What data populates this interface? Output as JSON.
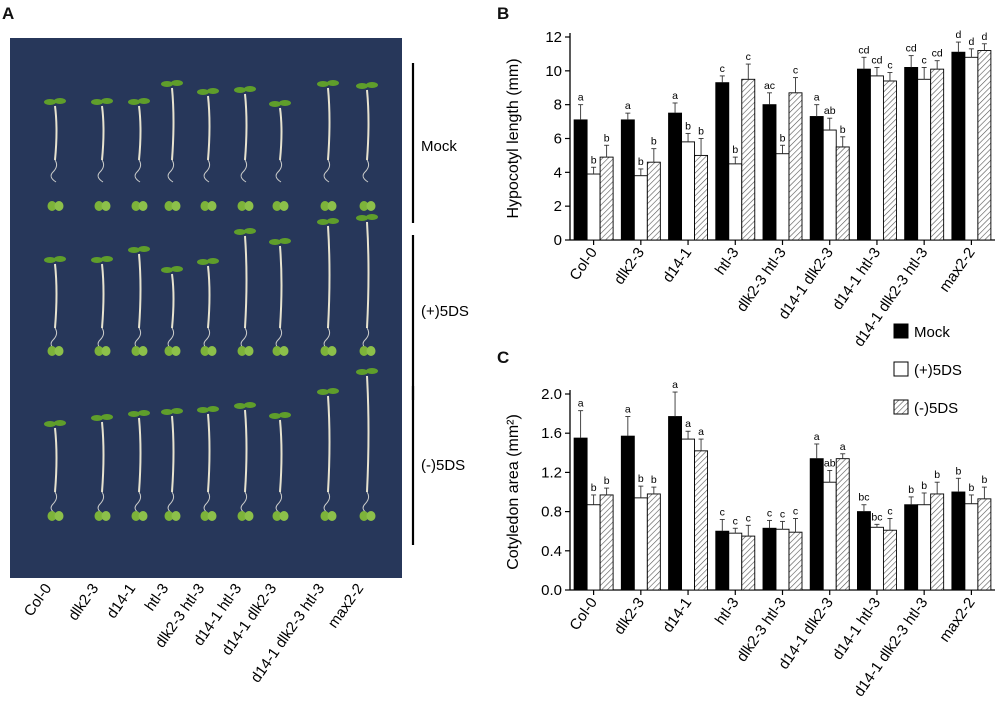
{
  "panel_labels": {
    "a": "A",
    "b": "B",
    "c": "C"
  },
  "photo": {
    "row_labels": [
      "Mock",
      "(+)5DS",
      "(-)5DS"
    ],
    "genotypes": [
      "Col-0",
      "dlk2-3",
      "d14-1",
      "htl-3",
      "dlk2-3 htl-3",
      "d14-1 htl-3",
      "d14-1 dlk2-3",
      "d14-1 dlk2-3 htl-3",
      "max2-2"
    ],
    "background_color": "#27375a",
    "seedling_color": "#5f9e2b"
  },
  "legend": {
    "entries": [
      "Mock",
      "(+)5DS",
      "(-)5DS"
    ]
  },
  "chart_data": [
    {
      "type": "bar",
      "panel": "B",
      "title": "",
      "xlabel": "",
      "ylabel": "Hypocotyl length (mm)",
      "ylim": [
        0,
        12
      ],
      "yticks": [
        "0",
        "2",
        "4",
        "6",
        "8",
        "10",
        "12"
      ],
      "categories": [
        "Col-0",
        "dlk2-3",
        "d14-1",
        "htl-3",
        "dlk2-3 htl-3",
        "d14-1 dlk2-3",
        "d14-1 htl-3",
        "d14-1 dlk2-3 htl-3",
        "max2-2"
      ],
      "series": [
        {
          "name": "Mock",
          "values": [
            7.1,
            7.1,
            7.5,
            9.3,
            8.0,
            7.3,
            10.1,
            10.2,
            11.1
          ],
          "errors": [
            0.9,
            0.4,
            0.6,
            0.4,
            0.7,
            0.7,
            0.7,
            0.7,
            0.6
          ],
          "letters": [
            "a",
            "a",
            "a",
            "c",
            "ac",
            "a",
            "cd",
            "cd",
            "d"
          ]
        },
        {
          "name": "(+)5DS",
          "values": [
            3.9,
            3.8,
            5.8,
            4.5,
            5.1,
            6.5,
            9.7,
            9.5,
            10.8
          ],
          "errors": [
            0.4,
            0.4,
            0.5,
            0.4,
            0.5,
            0.7,
            0.5,
            0.7,
            0.5
          ],
          "letters": [
            "b",
            "b",
            "b",
            "b",
            "b",
            "ab",
            "cd",
            "c",
            "d"
          ]
        },
        {
          "name": "(-)5DS",
          "values": [
            4.9,
            4.6,
            5.0,
            9.5,
            8.7,
            5.5,
            9.4,
            10.1,
            11.2
          ],
          "errors": [
            0.7,
            0.8,
            1.0,
            0.9,
            0.9,
            0.6,
            0.5,
            0.5,
            0.4
          ],
          "letters": [
            "b",
            "b",
            "b",
            "c",
            "c",
            "b",
            "c",
            "cd",
            "d"
          ]
        }
      ]
    },
    {
      "type": "bar",
      "panel": "C",
      "title": "",
      "xlabel": "",
      "ylabel": "Cotyledon area (mm²)",
      "ylim": [
        0,
        2.0
      ],
      "yticks": [
        "0.0",
        "0.4",
        "0.8",
        "1.2",
        "1.6",
        "2.0"
      ],
      "categories": [
        "Col-0",
        "dlk2-3",
        "d14-1",
        "htl-3",
        "dlk2-3 htl-3",
        "d14-1 dlk2-3",
        "d14-1 htl-3",
        "d14-1 dlk2-3 htl-3",
        "max2-2"
      ],
      "series": [
        {
          "name": "Mock",
          "values": [
            1.55,
            1.57,
            1.77,
            0.6,
            0.63,
            1.34,
            0.8,
            0.87,
            1.0
          ],
          "errors": [
            0.28,
            0.2,
            0.25,
            0.12,
            0.08,
            0.15,
            0.07,
            0.08,
            0.14
          ],
          "letters": [
            "a",
            "a",
            "a",
            "c",
            "c",
            "a",
            "bc",
            "b",
            "b"
          ]
        },
        {
          "name": "(+)5DS",
          "values": [
            0.87,
            0.94,
            1.54,
            0.58,
            0.62,
            1.1,
            0.64,
            0.87,
            0.88
          ],
          "errors": [
            0.1,
            0.12,
            0.08,
            0.05,
            0.08,
            0.12,
            0.03,
            0.12,
            0.09
          ],
          "letters": [
            "b",
            "b",
            "a",
            "c",
            "c",
            "ab",
            "bc",
            "b",
            "b"
          ]
        },
        {
          "name": "(-)5DS",
          "values": [
            0.97,
            0.98,
            1.42,
            0.55,
            0.59,
            1.34,
            0.61,
            0.98,
            0.93
          ],
          "errors": [
            0.07,
            0.07,
            0.12,
            0.11,
            0.14,
            0.05,
            0.12,
            0.12,
            0.12
          ],
          "letters": [
            "b",
            "b",
            "a",
            "c",
            "c",
            "a",
            "c",
            "b",
            "b"
          ]
        }
      ]
    }
  ]
}
